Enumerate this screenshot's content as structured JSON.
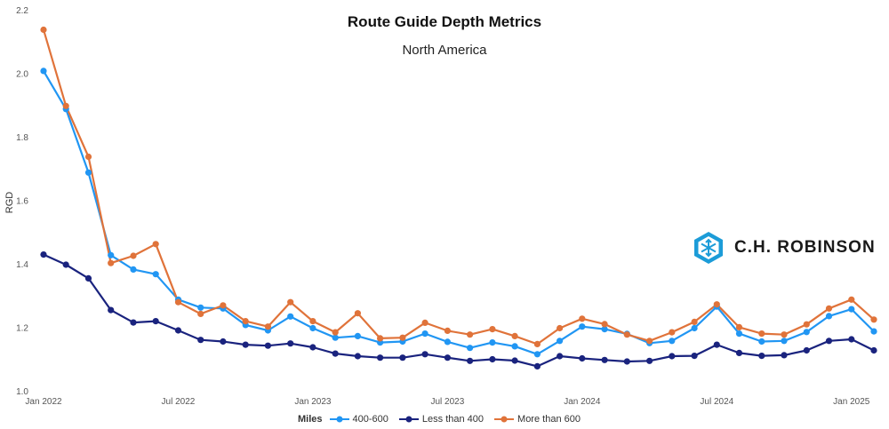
{
  "chart_data": {
    "type": "line",
    "title": "Route Guide Depth Metrics",
    "subtitle": "North America",
    "ylabel": "RGD",
    "xlabel": "",
    "ylim": [
      1.0,
      2.2
    ],
    "yticks": [
      "1.0",
      "1.2",
      "1.4",
      "1.6",
      "1.8",
      "2.0",
      "2.2"
    ],
    "xtick_labels": [
      "Jan 2022",
      "Jul 2022",
      "Jan 2023",
      "Jul 2023",
      "Jan 2024",
      "Jul 2024",
      "Jan 2025"
    ],
    "grid": false,
    "legend_title": "Miles",
    "legend_position": "bottom",
    "x": [
      "2022-01",
      "2022-02",
      "2022-03",
      "2022-04",
      "2022-05",
      "2022-06",
      "2022-07",
      "2022-08",
      "2022-09",
      "2022-10",
      "2022-11",
      "2022-12",
      "2023-01",
      "2023-02",
      "2023-03",
      "2023-04",
      "2023-05",
      "2023-06",
      "2023-07",
      "2023-08",
      "2023-09",
      "2023-10",
      "2023-11",
      "2023-12",
      "2024-01",
      "2024-02",
      "2024-03",
      "2024-04",
      "2024-05",
      "2024-06",
      "2024-07",
      "2024-08",
      "2024-09",
      "2024-10",
      "2024-11",
      "2024-12",
      "2025-01",
      "2025-02"
    ],
    "series": [
      {
        "name": "400-600",
        "color": "#2196f3",
        "values": [
          2.01,
          1.89,
          1.69,
          1.43,
          1.385,
          1.37,
          1.29,
          1.265,
          1.262,
          1.21,
          1.193,
          1.237,
          1.2,
          1.17,
          1.175,
          1.155,
          1.158,
          1.183,
          1.157,
          1.138,
          1.155,
          1.143,
          1.118,
          1.16,
          1.205,
          1.197,
          1.182,
          1.153,
          1.16,
          1.2,
          1.268,
          1.183,
          1.158,
          1.16,
          1.188,
          1.238,
          1.26,
          1.19
        ]
      },
      {
        "name": "Less than 400",
        "color": "#1a237e",
        "values": [
          1.432,
          1.4,
          1.357,
          1.257,
          1.218,
          1.222,
          1.193,
          1.163,
          1.158,
          1.148,
          1.145,
          1.152,
          1.14,
          1.12,
          1.112,
          1.107,
          1.107,
          1.118,
          1.107,
          1.097,
          1.102,
          1.098,
          1.08,
          1.112,
          1.105,
          1.1,
          1.095,
          1.097,
          1.112,
          1.113,
          1.148,
          1.122,
          1.113,
          1.115,
          1.13,
          1.16,
          1.165,
          1.13
        ]
      },
      {
        "name": "More than 600",
        "color": "#e0733a",
        "values": [
          2.14,
          1.9,
          1.74,
          1.405,
          1.428,
          1.465,
          1.282,
          1.245,
          1.272,
          1.222,
          1.205,
          1.282,
          1.222,
          1.187,
          1.247,
          1.168,
          1.17,
          1.217,
          1.192,
          1.18,
          1.197,
          1.175,
          1.15,
          1.2,
          1.23,
          1.213,
          1.18,
          1.16,
          1.187,
          1.22,
          1.275,
          1.203,
          1.183,
          1.18,
          1.212,
          1.262,
          1.29,
          1.227
        ]
      }
    ]
  },
  "brand": {
    "logo_text": "C.H. ROBINSON",
    "logo_color": "#1c9cd8",
    "icon": "ch-robinson-logo-icon"
  }
}
